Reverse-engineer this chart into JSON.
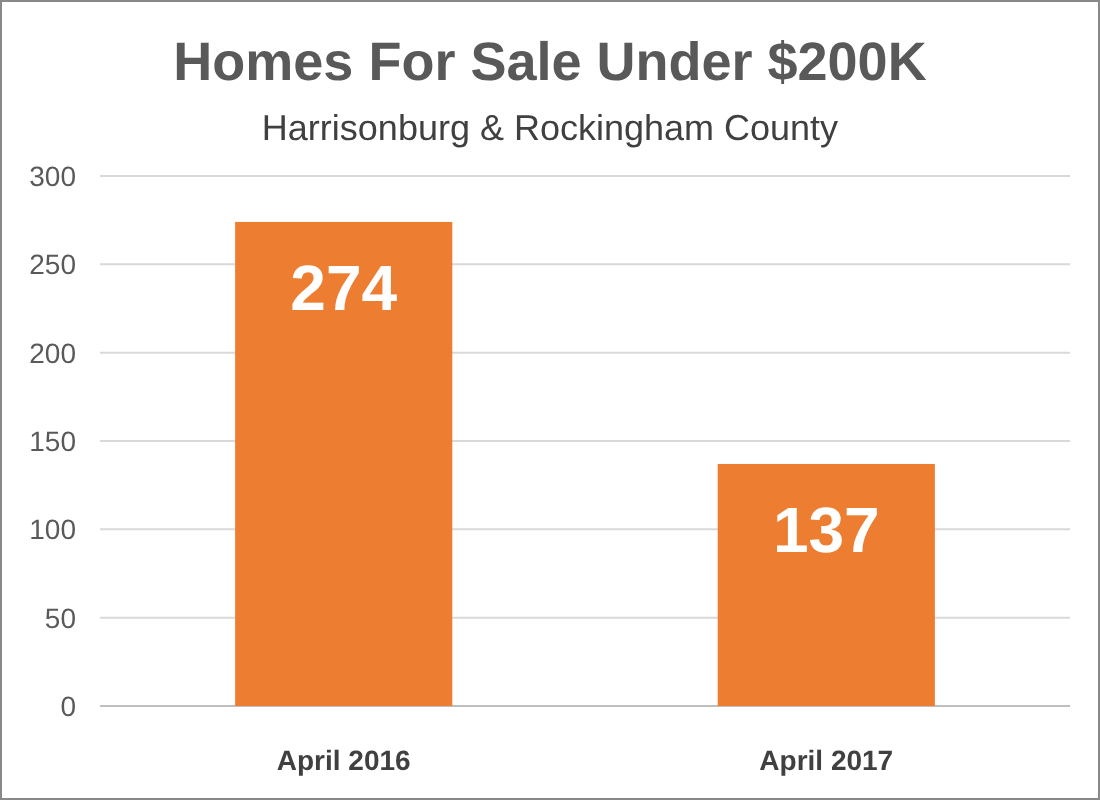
{
  "chart_data": {
    "type": "bar",
    "title": "Homes For Sale Under $200K",
    "subtitle": "Harrisonburg & Rockingham County",
    "categories": [
      "April 2016",
      "April 2017"
    ],
    "values": [
      274,
      137
    ],
    "color": "#ed7d31",
    "ylim": [
      0,
      300
    ],
    "yticks": [
      0,
      50,
      100,
      150,
      200,
      250,
      300
    ],
    "grid": "y",
    "data_labels": true
  }
}
